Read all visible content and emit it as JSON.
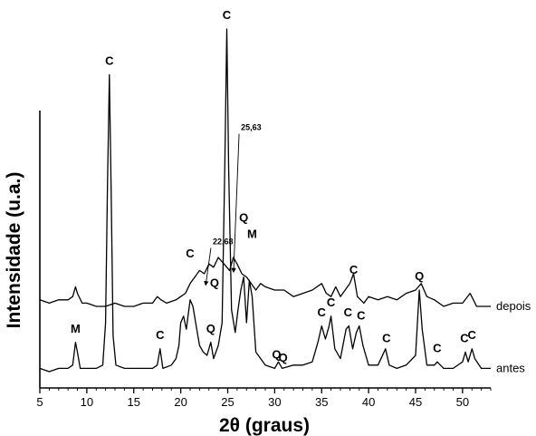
{
  "chart_data": {
    "type": "line",
    "title": "",
    "xlabel": "2θ (graus)",
    "ylabel": "Intensidade (u.a.)",
    "xlim": [
      5,
      53
    ],
    "xticks": [
      5,
      10,
      15,
      20,
      25,
      30,
      35,
      40,
      45,
      50
    ],
    "ylim": [
      0,
      100
    ],
    "grid": false,
    "series": [
      {
        "name": "antes",
        "color": "#000000",
        "points": [
          [
            5.0,
            6
          ],
          [
            6.0,
            5
          ],
          [
            7.0,
            6
          ],
          [
            8.0,
            6
          ],
          [
            8.5,
            7
          ],
          [
            8.8,
            14
          ],
          [
            9.0,
            11
          ],
          [
            9.3,
            6
          ],
          [
            10.0,
            6
          ],
          [
            11.0,
            6
          ],
          [
            11.7,
            7
          ],
          [
            12.0,
            20
          ],
          [
            12.2,
            62
          ],
          [
            12.4,
            96
          ],
          [
            12.6,
            60
          ],
          [
            12.8,
            16
          ],
          [
            13.1,
            7
          ],
          [
            14.0,
            6
          ],
          [
            15.0,
            6
          ],
          [
            16.0,
            6
          ],
          [
            17.0,
            6
          ],
          [
            17.5,
            7
          ],
          [
            17.8,
            12
          ],
          [
            18.1,
            6
          ],
          [
            19.0,
            7
          ],
          [
            19.5,
            9
          ],
          [
            19.8,
            13
          ],
          [
            20.0,
            20
          ],
          [
            20.3,
            22
          ],
          [
            20.6,
            18
          ],
          [
            21.0,
            27
          ],
          [
            21.3,
            25
          ],
          [
            21.7,
            18
          ],
          [
            22.0,
            13
          ],
          [
            22.4,
            11
          ],
          [
            22.8,
            10
          ],
          [
            23.2,
            14
          ],
          [
            23.5,
            9
          ],
          [
            24.0,
            13
          ],
          [
            24.4,
            20
          ],
          [
            24.7,
            70
          ],
          [
            24.9,
            110
          ],
          [
            25.1,
            68
          ],
          [
            25.4,
            24
          ],
          [
            25.8,
            17
          ],
          [
            26.1,
            24
          ],
          [
            26.4,
            30
          ],
          [
            26.7,
            34
          ],
          [
            27.0,
            20
          ],
          [
            27.3,
            33
          ],
          [
            27.6,
            28
          ],
          [
            28.0,
            11
          ],
          [
            29.0,
            7
          ],
          [
            30.0,
            6
          ],
          [
            30.4,
            8
          ],
          [
            30.8,
            6
          ],
          [
            32.0,
            7
          ],
          [
            33.0,
            7
          ],
          [
            34.0,
            8
          ],
          [
            34.6,
            14
          ],
          [
            35.0,
            19
          ],
          [
            35.4,
            15
          ],
          [
            35.8,
            19
          ],
          [
            36.0,
            22
          ],
          [
            36.4,
            12
          ],
          [
            37.0,
            9
          ],
          [
            37.6,
            18
          ],
          [
            37.9,
            19
          ],
          [
            38.3,
            12
          ],
          [
            38.7,
            17
          ],
          [
            39.0,
            19
          ],
          [
            39.4,
            13
          ],
          [
            40.0,
            7
          ],
          [
            41.0,
            7
          ],
          [
            41.8,
            12
          ],
          [
            42.2,
            7
          ],
          [
            43.0,
            6
          ],
          [
            44.0,
            7
          ],
          [
            45.0,
            10
          ],
          [
            45.4,
            30
          ],
          [
            45.7,
            18
          ],
          [
            46.2,
            7
          ],
          [
            47.0,
            7
          ],
          [
            47.3,
            8
          ],
          [
            48.0,
            6
          ],
          [
            49.0,
            6
          ],
          [
            50.0,
            8
          ],
          [
            50.3,
            11
          ],
          [
            50.6,
            8
          ],
          [
            51.0,
            12
          ],
          [
            51.3,
            9
          ],
          [
            52.0,
            6
          ],
          [
            53.0,
            6
          ]
        ]
      },
      {
        "name": "depois",
        "color": "#000000",
        "points": [
          [
            5.0,
            27
          ],
          [
            6.0,
            26
          ],
          [
            7.0,
            27
          ],
          [
            8.0,
            27
          ],
          [
            8.5,
            28
          ],
          [
            8.8,
            31
          ],
          [
            9.0,
            29
          ],
          [
            9.5,
            26
          ],
          [
            10.0,
            26
          ],
          [
            11.0,
            25
          ],
          [
            12.0,
            25
          ],
          [
            13.0,
            26
          ],
          [
            14.0,
            25
          ],
          [
            15.0,
            25
          ],
          [
            16.0,
            26
          ],
          [
            17.0,
            26
          ],
          [
            17.5,
            28
          ],
          [
            17.9,
            27
          ],
          [
            18.5,
            26
          ],
          [
            19.5,
            27
          ],
          [
            20.0,
            28
          ],
          [
            20.5,
            29
          ],
          [
            21.0,
            32
          ],
          [
            21.5,
            34
          ],
          [
            22.0,
            36
          ],
          [
            22.5,
            35
          ],
          [
            23.0,
            38
          ],
          [
            23.5,
            37
          ],
          [
            24.0,
            40
          ],
          [
            24.6,
            38
          ],
          [
            25.2,
            36
          ],
          [
            25.6,
            40
          ],
          [
            26.0,
            38
          ],
          [
            26.5,
            35
          ],
          [
            27.0,
            34
          ],
          [
            27.5,
            32
          ],
          [
            28.0,
            30
          ],
          [
            28.5,
            32
          ],
          [
            29.0,
            31
          ],
          [
            30.0,
            30
          ],
          [
            31.0,
            30
          ],
          [
            32.0,
            28
          ],
          [
            33.0,
            29
          ],
          [
            34.0,
            30
          ],
          [
            35.0,
            32
          ],
          [
            35.5,
            29
          ],
          [
            36.0,
            28
          ],
          [
            36.5,
            31
          ],
          [
            37.0,
            28
          ],
          [
            37.5,
            30
          ],
          [
            38.0,
            32
          ],
          [
            38.4,
            35
          ],
          [
            38.8,
            28
          ],
          [
            39.5,
            26
          ],
          [
            40.0,
            28
          ],
          [
            41.0,
            27
          ],
          [
            42.0,
            28
          ],
          [
            43.0,
            27
          ],
          [
            44.0,
            29
          ],
          [
            45.0,
            30
          ],
          [
            45.6,
            32
          ],
          [
            46.2,
            28
          ],
          [
            47.0,
            27
          ],
          [
            48.0,
            25
          ],
          [
            49.0,
            26
          ],
          [
            50.0,
            26
          ],
          [
            50.8,
            29
          ],
          [
            51.5,
            25
          ],
          [
            52.0,
            25
          ],
          [
            53.0,
            25
          ]
        ]
      }
    ],
    "peak_labels": [
      {
        "label": "M",
        "x": 8.8,
        "y": 17
      },
      {
        "label": "C",
        "x": 12.4,
        "y": 99
      },
      {
        "label": "C",
        "x": 17.8,
        "y": 15
      },
      {
        "label": "C",
        "x": 21.0,
        "y": 40
      },
      {
        "label": "Q",
        "x": 23.2,
        "y": 17
      },
      {
        "label": "Q",
        "x": 23.6,
        "y": 31
      },
      {
        "label": "C",
        "x": 24.9,
        "y": 113
      },
      {
        "label": "Q",
        "x": 26.7,
        "y": 51
      },
      {
        "label": "M",
        "x": 27.6,
        "y": 46
      },
      {
        "label": "Q",
        "x": 30.2,
        "y": 9
      },
      {
        "label": "Q",
        "x": 30.9,
        "y": 8
      },
      {
        "label": "C",
        "x": 35.0,
        "y": 22
      },
      {
        "label": "C",
        "x": 36.0,
        "y": 25
      },
      {
        "label": "C",
        "x": 37.8,
        "y": 22
      },
      {
        "label": "C",
        "x": 38.4,
        "y": 35
      },
      {
        "label": "C",
        "x": 39.2,
        "y": 21
      },
      {
        "label": "C",
        "x": 41.9,
        "y": 14
      },
      {
        "label": "Q",
        "x": 45.4,
        "y": 33
      },
      {
        "label": "C",
        "x": 47.3,
        "y": 11
      },
      {
        "label": "C",
        "x": 50.2,
        "y": 14
      },
      {
        "label": "C",
        "x": 51.0,
        "y": 15
      }
    ],
    "annotations": [
      {
        "text": "22,68",
        "x": 22.68,
        "y": 32,
        "text_x": 23.5,
        "text_y": 44
      },
      {
        "text": "25,63",
        "x": 25.63,
        "y": 36,
        "text_x": 26.5,
        "text_y": 79
      }
    ]
  }
}
